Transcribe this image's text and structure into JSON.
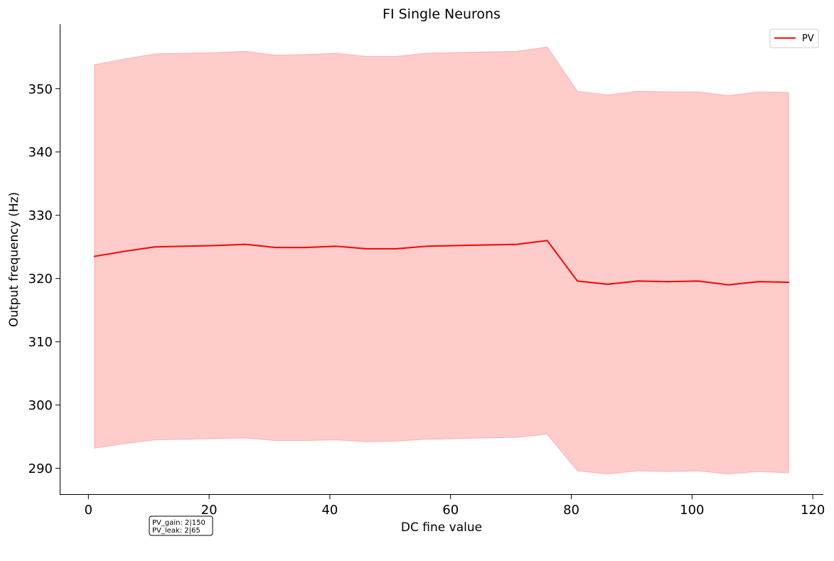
{
  "chart_data": {
    "type": "line",
    "title": "FI Single Neurons",
    "xlabel": "DC fine value",
    "ylabel": "Output frequency (Hz)",
    "xlim": [
      -4.75,
      121.75
    ],
    "ylim": [
      285.8,
      360.2
    ],
    "xticks": [
      0,
      20,
      40,
      60,
      80,
      100,
      120
    ],
    "yticks": [
      290,
      300,
      310,
      320,
      330,
      340,
      350
    ],
    "grid": false,
    "legend_position": "top-right",
    "series": [
      {
        "name": "PV",
        "color": "#ff0000",
        "band_color": "#ff9999",
        "x": [
          1,
          6,
          11,
          16,
          21,
          26,
          31,
          36,
          41,
          46,
          51,
          56,
          61,
          66,
          71,
          76,
          81,
          86,
          91,
          96,
          101,
          106,
          111,
          116
        ],
        "y": [
          323.5,
          324.3,
          325.0,
          325.1,
          325.2,
          325.4,
          324.9,
          324.9,
          325.1,
          324.7,
          324.7,
          325.1,
          325.2,
          325.3,
          325.4,
          326.0,
          319.6,
          319.1,
          319.6,
          319.5,
          319.6,
          319.0,
          319.5,
          319.4
        ],
        "upper": [
          353.8,
          354.7,
          355.5,
          355.6,
          355.7,
          355.9,
          355.3,
          355.4,
          355.6,
          355.1,
          355.1,
          355.6,
          355.7,
          355.8,
          355.9,
          356.6,
          349.6,
          349.0,
          349.6,
          349.5,
          349.5,
          348.9,
          349.5,
          349.4
        ],
        "lower": [
          293.2,
          293.9,
          294.5,
          294.6,
          294.7,
          294.8,
          294.4,
          294.4,
          294.5,
          294.2,
          294.3,
          294.6,
          294.7,
          294.8,
          294.9,
          295.4,
          289.6,
          289.1,
          289.6,
          289.5,
          289.6,
          289.1,
          289.5,
          289.3
        ]
      }
    ],
    "annotation": [
      "PV_gain: 2|150",
      "PV_leak: 2|65"
    ]
  }
}
